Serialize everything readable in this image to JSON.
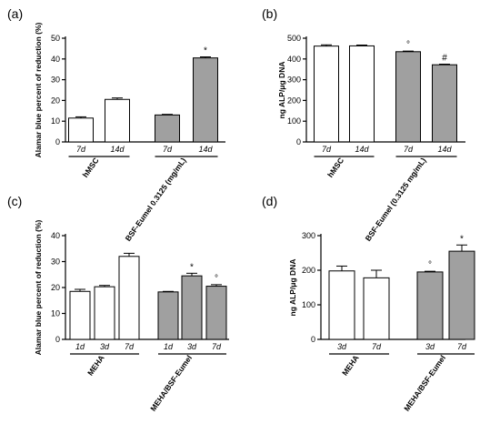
{
  "colors": {
    "white_bar": "#ffffff",
    "grey_bar": "#a0a0a0",
    "axis": "#000000"
  },
  "chart_data": [
    {
      "type": "bar",
      "panel": "(a)",
      "ylabel": "Alamar blue percent of reduction (%)",
      "ylim": [
        0,
        50
      ],
      "yticks": [
        0,
        10,
        20,
        30,
        40,
        50
      ],
      "bars": [
        {
          "label": "7d",
          "value": 11.5,
          "error": 0.6,
          "color": "white",
          "annotation": ""
        },
        {
          "label": "14d",
          "value": 20.5,
          "error": 0.7,
          "color": "white",
          "annotation": ""
        },
        {
          "label": "7d",
          "value": 13.0,
          "error": 0.3,
          "color": "grey",
          "annotation": ""
        },
        {
          "label": "14d",
          "value": 40.5,
          "error": 0.5,
          "color": "grey",
          "annotation": "*"
        }
      ],
      "groups": [
        {
          "label": "hMSC",
          "bars": [
            0,
            1
          ]
        },
        {
          "label": "BSF-Eumel 0.3125 (mg/mL)",
          "bars": [
            2,
            3
          ]
        }
      ]
    },
    {
      "type": "bar",
      "panel": "(b)",
      "ylabel": "ng ALP/μg DNA",
      "ylim": [
        0,
        500
      ],
      "yticks": [
        0,
        100,
        200,
        300,
        400,
        500
      ],
      "bars": [
        {
          "label": "7d",
          "value": 462,
          "error": 6,
          "color": "white",
          "annotation": ""
        },
        {
          "label": "14d",
          "value": 463,
          "error": 4,
          "color": "white",
          "annotation": ""
        },
        {
          "label": "7d",
          "value": 435,
          "error": 3,
          "color": "grey",
          "annotation": "°"
        },
        {
          "label": "14d",
          "value": 372,
          "error": 3,
          "color": "grey",
          "annotation": "#"
        }
      ],
      "groups": [
        {
          "label": "hMSC",
          "bars": [
            0,
            1
          ]
        },
        {
          "label": "BSF-Eumel (0.3125 mg/mL)",
          "bars": [
            2,
            3
          ]
        }
      ]
    },
    {
      "type": "bar",
      "panel": "(c)",
      "ylabel": "Alamar blue percent of reduction (%)",
      "ylim": [
        0,
        40
      ],
      "yticks": [
        0,
        10,
        20,
        30,
        40
      ],
      "bars": [
        {
          "label": "1d",
          "value": 18.5,
          "error": 0.8,
          "color": "white",
          "annotation": ""
        },
        {
          "label": "3d",
          "value": 20.3,
          "error": 0.5,
          "color": "white",
          "annotation": ""
        },
        {
          "label": "7d",
          "value": 32.0,
          "error": 1.2,
          "color": "white",
          "annotation": ""
        },
        {
          "label": "1d",
          "value": 18.3,
          "error": 0.2,
          "color": "grey",
          "annotation": ""
        },
        {
          "label": "3d",
          "value": 24.5,
          "error": 1.0,
          "color": "grey",
          "annotation": "*"
        },
        {
          "label": "7d",
          "value": 20.5,
          "error": 0.6,
          "color": "grey",
          "annotation": "°"
        }
      ],
      "groups": [
        {
          "label": "MEHA",
          "bars": [
            0,
            1,
            2
          ]
        },
        {
          "label": "MEHA/BSF-Eumel",
          "bars": [
            3,
            4,
            5
          ]
        }
      ]
    },
    {
      "type": "bar",
      "panel": "(d)",
      "ylabel": "ng ALP/μg DNA",
      "ylim": [
        0,
        300
      ],
      "yticks": [
        0,
        100,
        200,
        300
      ],
      "bars": [
        {
          "label": "3d",
          "value": 198,
          "error": 14,
          "color": "white",
          "annotation": ""
        },
        {
          "label": "7d",
          "value": 178,
          "error": 22,
          "color": "white",
          "annotation": ""
        },
        {
          "label": "3d",
          "value": 195,
          "error": 2,
          "color": "grey",
          "annotation": "°"
        },
        {
          "label": "7d",
          "value": 255,
          "error": 18,
          "color": "grey",
          "annotation": "*"
        }
      ],
      "groups": [
        {
          "label": "MEHA",
          "bars": [
            0,
            1
          ]
        },
        {
          "label": "MEHA/BSF-Eumel",
          "bars": [
            2,
            3
          ]
        }
      ]
    }
  ]
}
